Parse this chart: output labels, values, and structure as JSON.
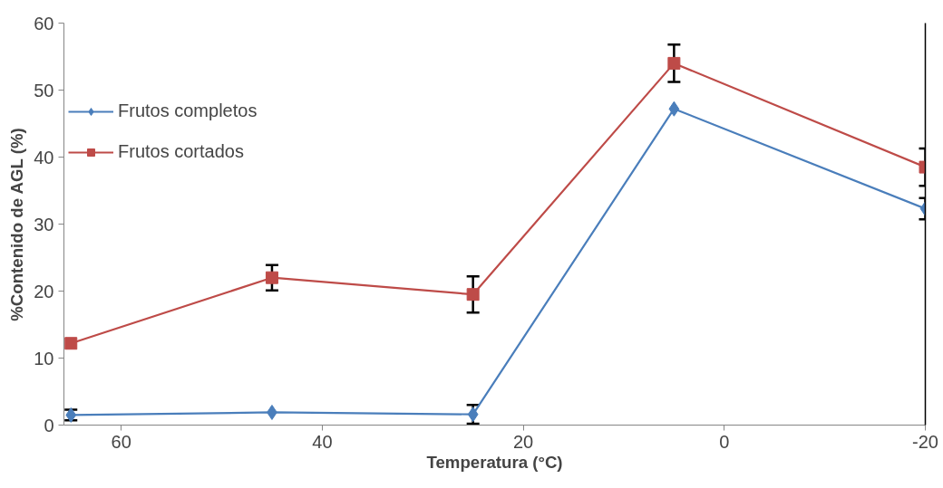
{
  "chart_data": {
    "type": "line",
    "xlabel": "Temperatura (°C)",
    "ylabel": "%Contenido de AGL (%)",
    "x": [
      65,
      45,
      25,
      5,
      -20
    ],
    "xlim": [
      65.7,
      -20
    ],
    "xticks": [
      60,
      40,
      20,
      0,
      -20
    ],
    "ylim": [
      0,
      60
    ],
    "yticks": [
      0,
      10,
      20,
      30,
      40,
      50,
      60
    ],
    "series": [
      {
        "name": "Frutos completos",
        "color": "#4a7ebb",
        "marker": "diamond",
        "values": [
          1.5,
          1.9,
          1.6,
          47.2,
          32.3
        ],
        "errors": [
          0.8,
          null,
          1.4,
          null,
          1.6
        ]
      },
      {
        "name": "Frutos cortados",
        "color": "#be4b48",
        "marker": "square",
        "values": [
          12.2,
          22.0,
          19.5,
          54.0,
          38.5
        ],
        "errors": [
          null,
          1.9,
          2.7,
          2.8,
          2.8
        ]
      }
    ],
    "grid": false,
    "legend": "left",
    "line_style": "solid"
  }
}
